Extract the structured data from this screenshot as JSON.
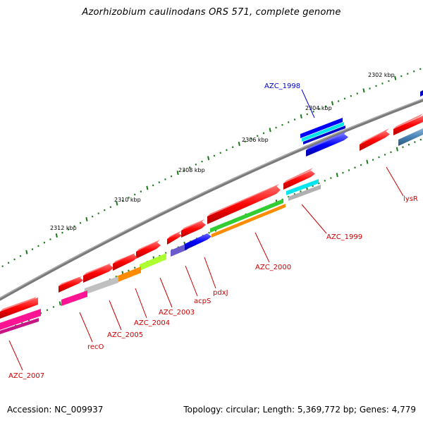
{
  "title": "Azorhizobium caulinodans ORS 571, complete genome",
  "footer": {
    "accession": "Accession: NC_009937",
    "topology": "Topology: circular; Length: 5,369,772 bp; Genes: 4,779"
  },
  "backbone_color": "#808080",
  "tick_color": "#1a7a1a",
  "ticks": [
    {
      "kbp": 2302,
      "label": "2302 kbp"
    },
    {
      "kbp": 2304,
      "label": "2304 kbp"
    },
    {
      "kbp": 2306,
      "label": "2306 kbp"
    },
    {
      "kbp": 2308,
      "label": "2308 kbp"
    },
    {
      "kbp": 2310,
      "label": "2310 kbp"
    },
    {
      "kbp": 2312,
      "label": "2312 kbp"
    }
  ],
  "genes": [
    {
      "id": "g1",
      "label": "lysR",
      "color": "#ff0000",
      "label_color": "#cc0000"
    },
    {
      "id": "g2",
      "label": "",
      "color": "#ff0000"
    },
    {
      "id": "g3",
      "label": "",
      "color": "#4682b4"
    },
    {
      "id": "g4",
      "label": "AZC_1998",
      "color": "#0000ff",
      "label_color": "#0000cc"
    },
    {
      "id": "g5",
      "label": "AZC_1999",
      "color": "#ff0000",
      "label_color": "#cc0000"
    },
    {
      "id": "g6",
      "label": "AZC_2000",
      "color": "#ff0000",
      "label_color": "#cc0000"
    },
    {
      "id": "g7",
      "label": "pdxJ",
      "color": "#0000ff",
      "label_color": "#cc0000"
    },
    {
      "id": "g8",
      "label": "acpS",
      "color": "#ff0000",
      "label_color": "#cc0000"
    },
    {
      "id": "g9",
      "label": "AZC_2003",
      "color": "#ff0000",
      "label_color": "#cc0000"
    },
    {
      "id": "g10",
      "label": "AZC_2004",
      "color": "#ff0000",
      "label_color": "#cc0000"
    },
    {
      "id": "g11",
      "label": "AZC_2005",
      "color": "#ff0000",
      "label_color": "#cc0000"
    },
    {
      "id": "g12",
      "label": "recO",
      "color": "#ff0000",
      "label_color": "#cc0000"
    },
    {
      "id": "g13",
      "label": "AZC_2007",
      "color": "#ff0000",
      "label_color": "#cc0000"
    }
  ]
}
